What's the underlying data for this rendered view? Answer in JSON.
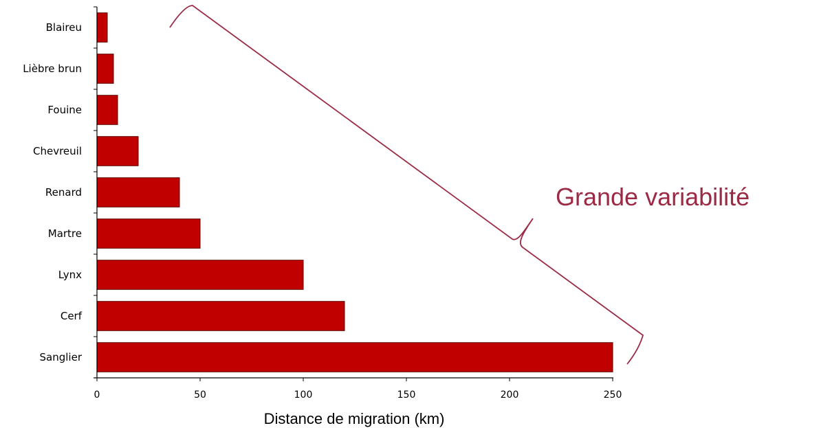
{
  "chart_data": {
    "type": "bar",
    "orientation": "horizontal",
    "categories": [
      "Blaireu",
      "Lièbre brun",
      "Fouine",
      "Chevreuil",
      "Renard",
      "Martre",
      "Lynx",
      "Cerf",
      "Sanglier"
    ],
    "values": [
      5,
      8,
      10,
      20,
      40,
      50,
      100,
      120,
      250
    ],
    "xlabel": "Distance de migration (km)",
    "ylabel": "",
    "xlim": [
      0,
      250
    ],
    "xticks": [
      0,
      50,
      100,
      150,
      200,
      250
    ],
    "grid": false,
    "annotation": "Grande variabilité"
  },
  "colors": {
    "bar_fill": "#c00000",
    "bar_stroke": "#5a0000",
    "annotation": "#9b2a45",
    "axis": "#000000"
  }
}
